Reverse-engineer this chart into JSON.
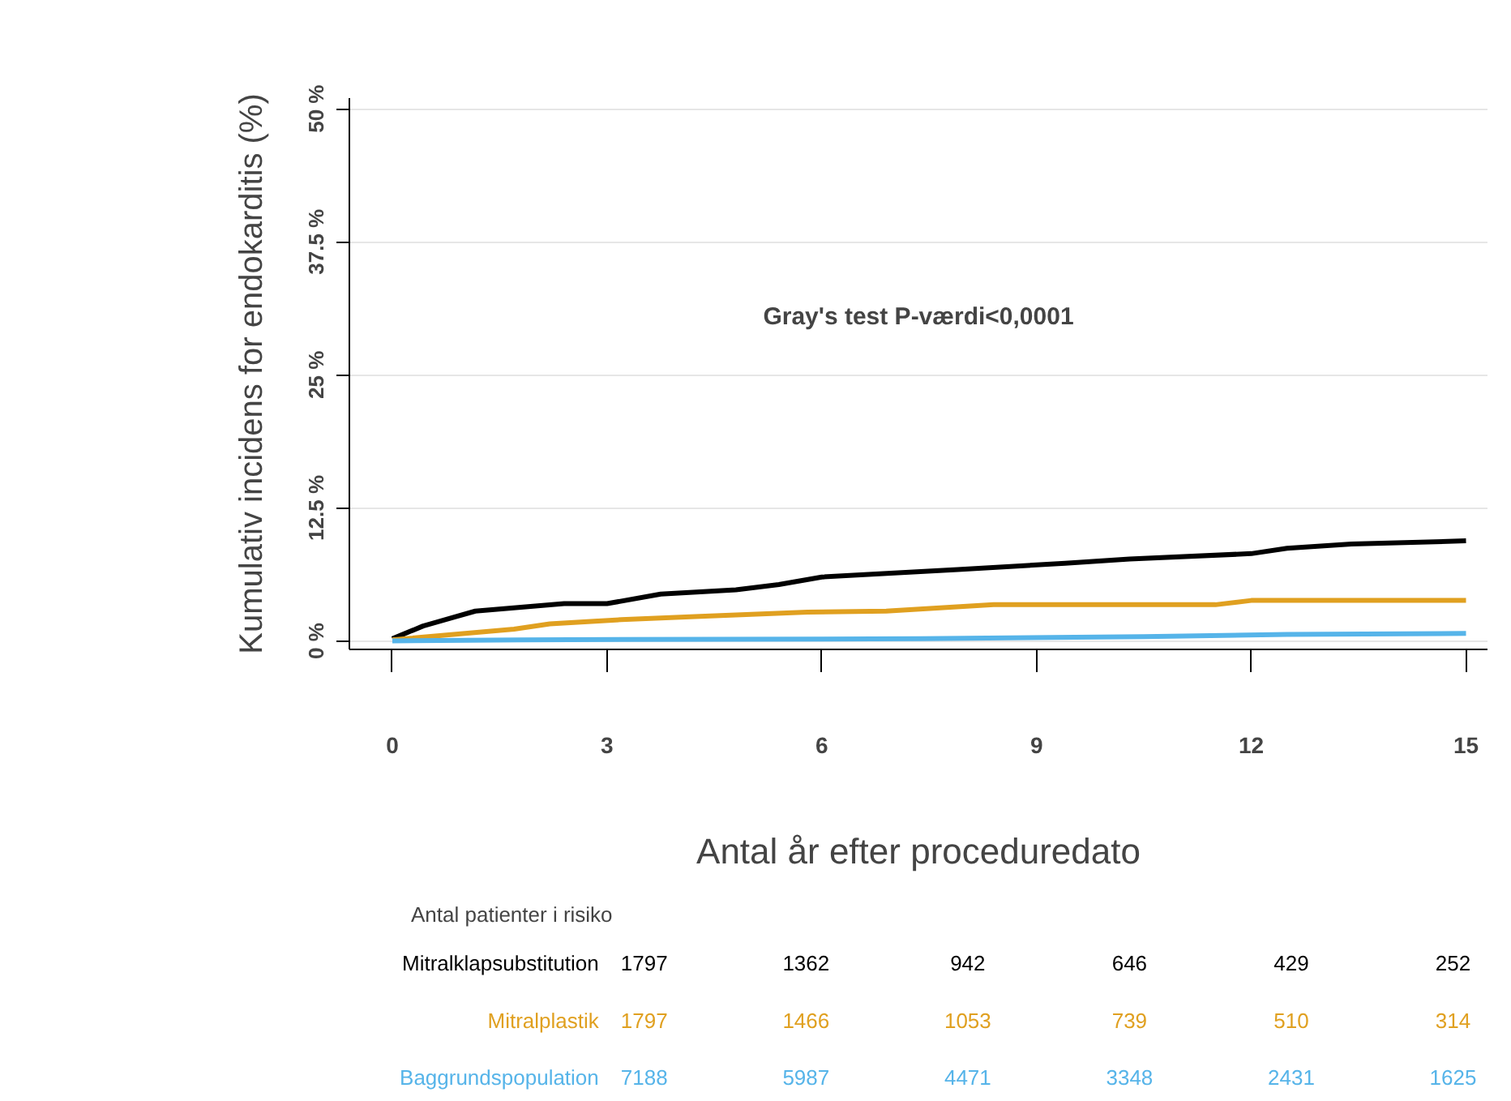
{
  "chart_data": {
    "type": "line",
    "xlabel": "Antal år efter proceduredato",
    "ylabel": "Kumulativ incidens for endokarditis (%)",
    "xlim": [
      -0.6,
      15.3
    ],
    "ylim": [
      -0.8,
      51
    ],
    "xticks": [
      0,
      3,
      6,
      9,
      12,
      15
    ],
    "yticks": [
      {
        "value": 0,
        "label": "0 %"
      },
      {
        "value": 12.5,
        "label": "12.5 %"
      },
      {
        "value": 25,
        "label": "25 %"
      },
      {
        "value": 37.5,
        "label": "37.5 %"
      },
      {
        "value": 50,
        "label": "50 %"
      }
    ],
    "grid": "y",
    "line_style": "solid",
    "series": [
      {
        "name": "Mitralklapsubstitution",
        "color": "#000000",
        "x": [
          0,
          0.43,
          1.16,
          2.4,
          3,
          3.75,
          4.8,
          5.4,
          6.0,
          7.9,
          9.4,
          10.3,
          12,
          12.5,
          13.4,
          15
        ],
        "values": [
          0.2,
          1.4,
          2.8,
          3.5,
          3.5,
          4.4,
          4.8,
          5.3,
          6.0,
          6.7,
          7.3,
          7.7,
          8.2,
          8.7,
          9.1,
          9.4
        ]
      },
      {
        "name": "Mitralplastik",
        "color": "#e0a020",
        "x": [
          0,
          1.7,
          2.2,
          3.2,
          4.3,
          5.8,
          6.9,
          8.4,
          11.5,
          12,
          15
        ],
        "values": [
          0.1,
          1.1,
          1.6,
          2.0,
          2.3,
          2.7,
          2.8,
          3.4,
          3.4,
          3.8,
          3.8
        ]
      },
      {
        "name": "Baggrundspopulation",
        "color": "#56b4e9",
        "x": [
          0,
          1.8,
          7.4,
          10.5,
          12.5,
          15
        ],
        "values": [
          0,
          0.1,
          0.2,
          0.4,
          0.6,
          0.7
        ]
      }
    ],
    "annotations": [
      "Gray's test P-værdi<0,0001",
      "Antal patienter i risiko",
      "1797",
      "1362",
      "942",
      "646",
      "429",
      "252",
      "1797",
      "1466",
      "1053",
      "739",
      "510",
      "314",
      "7188",
      "5987",
      "4471",
      "3348",
      "2431",
      "1625"
    ]
  }
}
